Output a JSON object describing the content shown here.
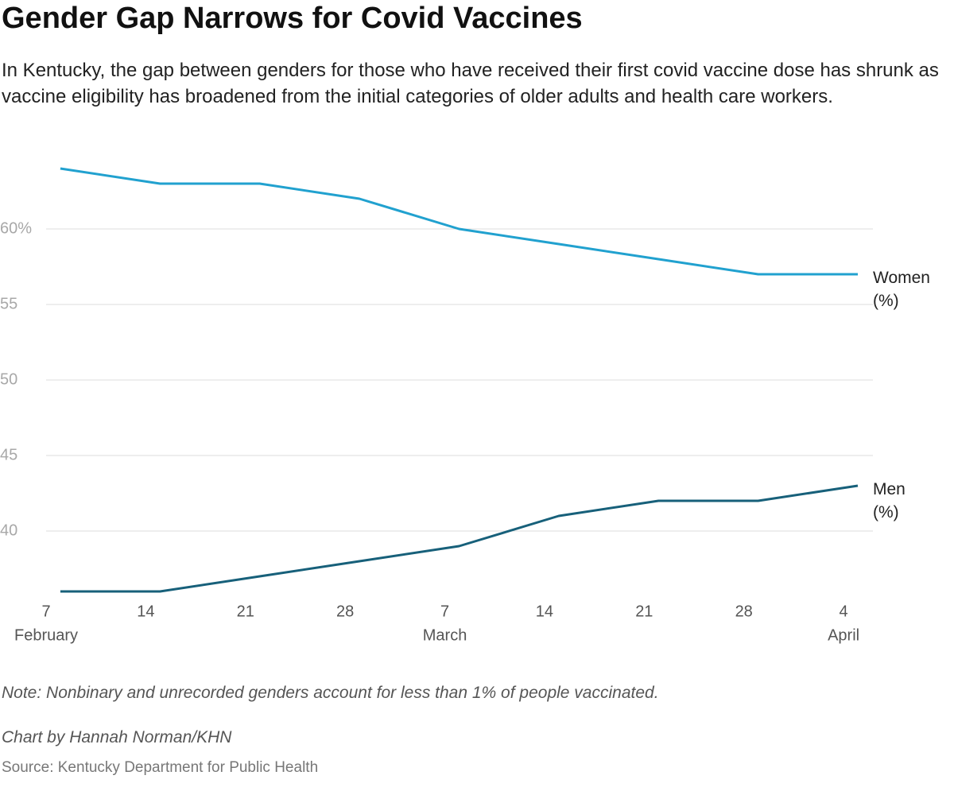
{
  "chart_data": {
    "type": "line",
    "title": "Gender Gap Narrows for Covid Vaccines",
    "subtitle": "In Kentucky, the gap between genders for those who have received their first covid vaccine dose has shrunk as vaccine eligibility has broadened from the initial categories of older adults and health care workers.",
    "x": [
      "February 8",
      "February 15",
      "February 22",
      "March 1",
      "March 8",
      "March 15",
      "March 22",
      "March 29",
      "April 5"
    ],
    "series": [
      {
        "name": "Women (%)",
        "color": "#21a1cf",
        "values": [
          64,
          63,
          63,
          62,
          60,
          59,
          58,
          57,
          57
        ]
      },
      {
        "name": "Men (%)",
        "color": "#17607a",
        "values": [
          36,
          36,
          37,
          38,
          39,
          41,
          42,
          42,
          43
        ]
      }
    ],
    "xlim": [
      "February 7",
      "April 5"
    ],
    "xticks": [
      {
        "value": "February 7",
        "label": "7"
      },
      {
        "value": "February 14",
        "label": "14"
      },
      {
        "value": "February 21",
        "label": "21"
      },
      {
        "value": "February 28",
        "label": "28"
      },
      {
        "value": "March 7",
        "label": "7"
      },
      {
        "value": "March 14",
        "label": "14"
      },
      {
        "value": "March 21",
        "label": "21"
      },
      {
        "value": "March 28",
        "label": "28"
      },
      {
        "value": "April 4",
        "label": "4"
      }
    ],
    "x_month_labels": [
      {
        "value": "February 7",
        "label": "February"
      },
      {
        "value": "March 7",
        "label": "March"
      },
      {
        "value": "April 4",
        "label": "April"
      }
    ],
    "ylim": [
      36,
      64
    ],
    "yticks": [
      40,
      45,
      50,
      55,
      {
        "value": 60,
        "label": "60%"
      }
    ],
    "grid": true,
    "note": "Note: Nonbinary and unrecorded genders account for less than 1% of people vaccinated.",
    "credit": "Chart by Hannah Norman/KHN",
    "source": "Source: Kentucky Department for Public Health"
  }
}
